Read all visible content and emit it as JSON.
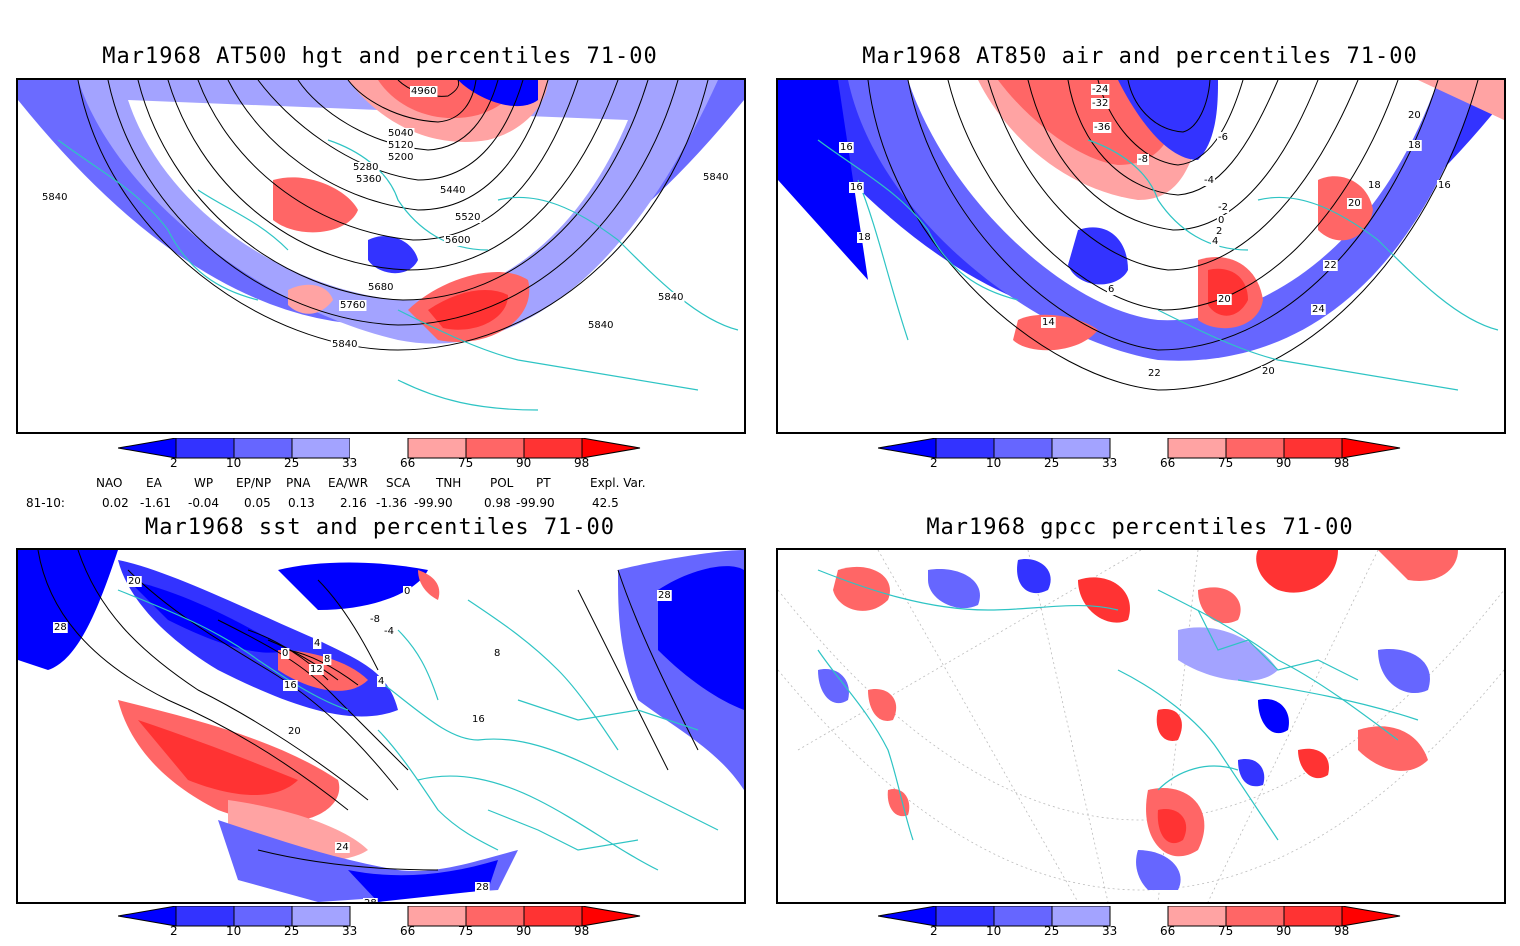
{
  "panels": [
    {
      "title": "Mar1968 AT500 hgt and percentiles 71-00",
      "contour_labels": [
        "4960",
        "5040",
        "5120",
        "5200",
        "5280",
        "5360",
        "5440",
        "5520",
        "5600",
        "5680",
        "5760",
        "5840",
        "5840",
        "5840",
        "5840",
        "5840"
      ]
    },
    {
      "title": "Mar1968 AT850 air and percentiles 71-00",
      "contour_labels": [
        "-24",
        "-32",
        "-36",
        "-6",
        "-8",
        "-4",
        "-2",
        "0",
        "2",
        "4",
        "6",
        "14",
        "16",
        "16",
        "16",
        "18",
        "18",
        "18",
        "20",
        "20",
        "20",
        "20",
        "22",
        "22",
        "24"
      ]
    },
    {
      "title": "Mar1968 sst and percentiles 71-00",
      "contour_labels": [
        "28",
        "28",
        "20",
        "0",
        "4",
        "8",
        "12",
        "16",
        "16",
        "20",
        "24",
        "28",
        "28",
        "0",
        "-8",
        "-4",
        "4",
        "8"
      ]
    },
    {
      "title": "Mar1968 gpcc percentiles 71-00",
      "contour_labels": []
    }
  ],
  "colorbar": {
    "labels": [
      "2",
      "10",
      "25",
      "33",
      "66",
      "75",
      "90",
      "98"
    ],
    "colors": [
      "#0000ff",
      "#3333ff",
      "#6666ff",
      "#a3a3ff",
      "#ffffff",
      "#ffa3a3",
      "#ff6666",
      "#ff3333",
      "#ff0000"
    ]
  },
  "indices": {
    "header": [
      "NAO",
      "EA",
      "WP",
      "EP/NP",
      "PNA",
      "EA/WR",
      "SCA",
      "TNH",
      "POL",
      "PT",
      "Expl. Var."
    ],
    "row_label": "81-10:",
    "values": [
      "0.02",
      "-1.61",
      "-0.04",
      "0.05",
      "0.13",
      "2.16",
      "-1.36",
      "-99.90",
      "0.98",
      "-99.90",
      "42.5"
    ]
  },
  "colors": {
    "coast": "#2ec4c4",
    "frame": "#000000"
  }
}
